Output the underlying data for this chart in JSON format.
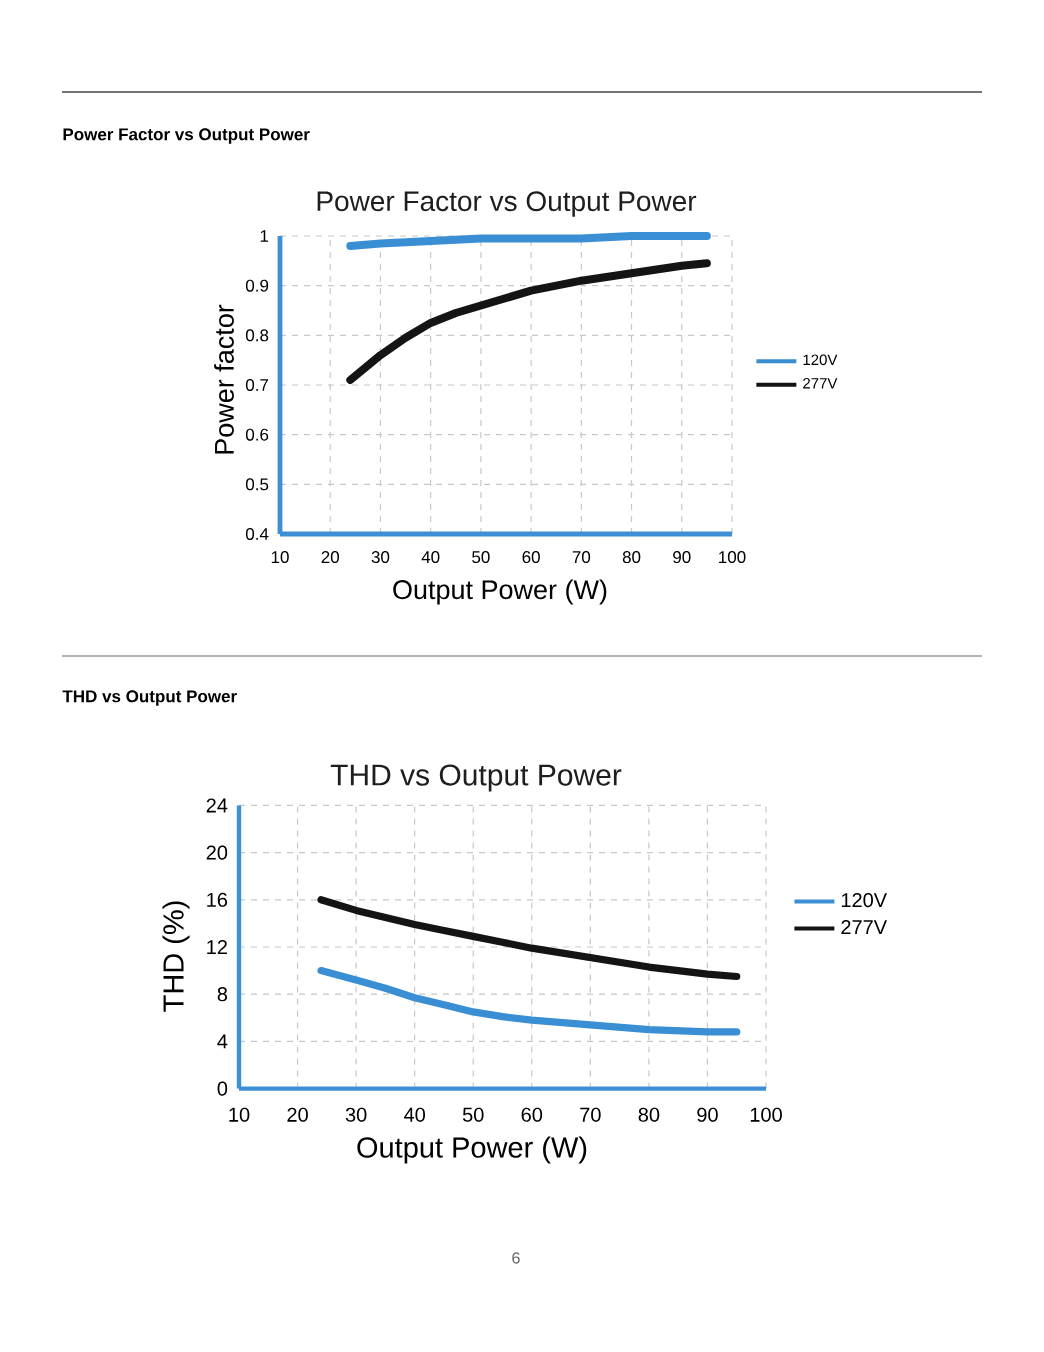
{
  "chart_data": [
    {
      "type": "line",
      "title": "Power Factor vs Output Power",
      "xlabel": "Output Power (W)",
      "ylabel": "Power factor",
      "xlim": [
        10,
        100
      ],
      "ylim": [
        0.4,
        1
      ],
      "xticks": [
        10,
        20,
        30,
        40,
        50,
        60,
        70,
        80,
        90,
        100
      ],
      "yticks": [
        0.4,
        0.5,
        0.6,
        0.7,
        0.8,
        0.9,
        1
      ],
      "grid": true,
      "legend": "right",
      "annotations": [
        "Power Factor vs Output Power"
      ],
      "series": [
        {
          "name": "120V",
          "color": "#3a8fd4",
          "x": [
            24,
            30,
            40,
            50,
            60,
            70,
            80,
            95
          ],
          "values": [
            0.98,
            0.985,
            0.99,
            0.995,
            0.995,
            0.995,
            1.0,
            1.0
          ]
        },
        {
          "name": "277V",
          "color": "#141414",
          "x": [
            24,
            30,
            35,
            40,
            45,
            50,
            55,
            60,
            70,
            80,
            90,
            95
          ],
          "values": [
            0.71,
            0.76,
            0.795,
            0.825,
            0.845,
            0.86,
            0.875,
            0.89,
            0.91,
            0.925,
            0.94,
            0.945
          ]
        }
      ]
    },
    {
      "type": "line",
      "title": "THD vs Output Power",
      "xlabel": "Output Power (W)",
      "ylabel": "THD (%)",
      "xlim": [
        10,
        100
      ],
      "ylim": [
        0,
        24
      ],
      "xticks": [
        10,
        20,
        30,
        40,
        50,
        60,
        70,
        80,
        90,
        100
      ],
      "yticks": [
        0,
        4,
        8,
        12,
        16,
        20,
        24
      ],
      "grid": true,
      "legend": "right",
      "annotations": [
        "THD vs Output Power",
        "6"
      ],
      "series": [
        {
          "name": "120V",
          "color": "#3a8fd4",
          "x": [
            24,
            30,
            35,
            40,
            45,
            50,
            55,
            60,
            70,
            80,
            90,
            95
          ],
          "values": [
            10,
            9.2,
            8.5,
            7.7,
            7.1,
            6.5,
            6.1,
            5.8,
            5.4,
            5,
            4.8,
            4.8
          ]
        },
        {
          "name": "277V",
          "color": "#141414",
          "x": [
            24,
            30,
            35,
            40,
            45,
            50,
            55,
            60,
            70,
            80,
            90,
            95
          ],
          "values": [
            16,
            15.1,
            14.5,
            13.9,
            13.4,
            12.9,
            12.4,
            11.9,
            11.1,
            10.3,
            9.7,
            9.5
          ]
        }
      ]
    }
  ]
}
